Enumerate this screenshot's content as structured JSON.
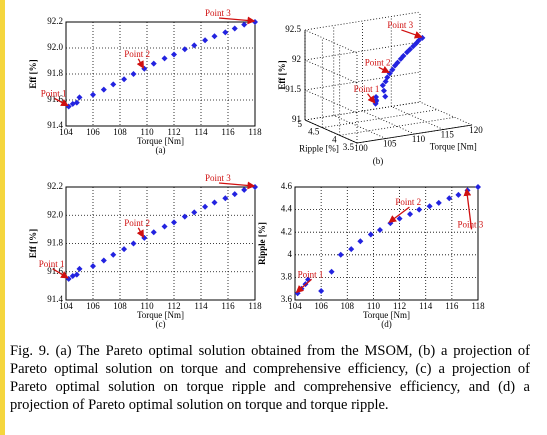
{
  "chart_data": [
    {
      "type": "scatter",
      "panel": "(a)",
      "xlabel": "Torque [Nm]",
      "ylabel": "Eff [%]",
      "color": "#2323e0",
      "grid": true,
      "x": [
        104.2,
        104.5,
        104.8,
        105.0,
        106.0,
        106.8,
        107.5,
        108.3,
        109.0,
        109.8,
        110.5,
        111.3,
        112.0,
        112.8,
        113.5,
        114.3,
        115.0,
        115.8,
        116.5,
        117.2,
        118.0
      ],
      "y": [
        91.55,
        91.57,
        91.58,
        91.62,
        91.64,
        91.68,
        91.72,
        91.76,
        91.8,
        91.84,
        91.88,
        91.92,
        91.95,
        91.99,
        92.02,
        92.06,
        92.09,
        92.12,
        92.15,
        92.18,
        92.2
      ],
      "xlim": [
        104,
        118
      ],
      "xticks": [
        104,
        106,
        108,
        110,
        112,
        114,
        116,
        118
      ],
      "ylim": [
        91.4,
        92.2
      ],
      "yticks": [
        91.4,
        91.6,
        91.8,
        {
          "value": 92,
          "label": "92.0"
        },
        92.2
      ],
      "annotations": [
        {
          "text": "Point 1"
        },
        {
          "text": "Point 2"
        },
        {
          "text": "Point 3"
        }
      ]
    },
    {
      "type": "scatter3d",
      "panel": "(b)",
      "xlabel": "Torque [Nm]",
      "ylabel": "Ripple [%]",
      "zlabel": "Eff [%]",
      "color": "#2323e0",
      "x": [
        104.2,
        104.5,
        104.8,
        105.0,
        106.0,
        106.8,
        107.5,
        108.3,
        109.0,
        109.8,
        110.5,
        111.3,
        112.0,
        112.8,
        113.5,
        114.3,
        115.0,
        115.8,
        116.5,
        117.2,
        118.0
      ],
      "y": [
        3.66,
        3.7,
        3.74,
        3.78,
        3.68,
        3.85,
        4.0,
        4.05,
        4.12,
        4.18,
        4.22,
        4.28,
        4.32,
        4.36,
        4.4,
        4.43,
        4.46,
        4.5,
        4.53,
        4.57,
        4.6
      ],
      "z": [
        91.55,
        91.57,
        91.58,
        91.62,
        91.64,
        91.68,
        91.72,
        91.76,
        91.8,
        91.84,
        91.88,
        91.92,
        91.95,
        91.99,
        92.02,
        92.06,
        92.09,
        92.12,
        92.15,
        92.18,
        92.2
      ],
      "xlim": [
        100,
        120
      ],
      "xticks": [
        100,
        105,
        110,
        115,
        120
      ],
      "ylim": [
        3.5,
        5
      ],
      "yticks": [
        3.5,
        4,
        4.5,
        5
      ],
      "zlim": [
        91,
        92.5
      ],
      "zticks": [
        91,
        {
          "value": 91.5,
          "label": "91.5"
        },
        92,
        {
          "value": 92.5,
          "label": "92.5"
        }
      ],
      "annotations": [
        {
          "text": "Point 1"
        },
        {
          "text": "Point 2"
        },
        {
          "text": "Point 3"
        }
      ]
    },
    {
      "type": "scatter",
      "panel": "(c)",
      "xlabel": "Torque [Nm]",
      "ylabel": "Eff [%]",
      "color": "#2323e0",
      "grid": true,
      "x": [
        104.2,
        104.5,
        104.8,
        105.0,
        106.0,
        106.8,
        107.5,
        108.3,
        109.0,
        109.8,
        110.5,
        111.3,
        112.0,
        112.8,
        113.5,
        114.3,
        115.0,
        115.8,
        116.5,
        117.2,
        118.0
      ],
      "y": [
        91.55,
        91.57,
        91.58,
        91.62,
        91.64,
        91.68,
        91.72,
        91.76,
        91.8,
        91.84,
        91.88,
        91.92,
        91.95,
        91.99,
        92.02,
        92.06,
        92.09,
        92.12,
        92.15,
        92.18,
        92.2
      ],
      "xlim": [
        104,
        118
      ],
      "xticks": [
        104,
        106,
        108,
        110,
        112,
        114,
        116,
        118
      ],
      "ylim": [
        91.4,
        92.2
      ],
      "yticks": [
        91.4,
        91.6,
        91.8,
        {
          "value": 92,
          "label": "92.0"
        },
        92.2
      ],
      "annotations": [
        {
          "text": "Point 1"
        },
        {
          "text": "Point 2"
        },
        {
          "text": "Point 3"
        }
      ]
    },
    {
      "type": "scatter",
      "panel": "(d)",
      "xlabel": "Torque [Nm]",
      "ylabel": "Ripple [%]",
      "color": "#2323e0",
      "grid": true,
      "x": [
        104.2,
        104.5,
        104.8,
        105.0,
        106.0,
        106.8,
        107.5,
        108.3,
        109.0,
        109.8,
        110.5,
        111.3,
        112.0,
        112.8,
        113.5,
        114.3,
        115.0,
        115.8,
        116.5,
        117.2,
        118.0
      ],
      "y": [
        3.66,
        3.7,
        3.74,
        3.78,
        3.68,
        3.85,
        4.0,
        4.05,
        4.12,
        4.18,
        4.22,
        4.28,
        4.32,
        4.36,
        4.4,
        4.43,
        4.46,
        4.5,
        4.53,
        4.57,
        4.6
      ],
      "xlim": [
        104,
        118
      ],
      "xticks": [
        104,
        106,
        108,
        110,
        112,
        114,
        116,
        118
      ],
      "ylim": [
        3.6,
        4.6
      ],
      "yticks": [
        3.6,
        3.8,
        4,
        4.2,
        4.4,
        4.6
      ],
      "annotations": [
        {
          "text": "Point 1"
        },
        {
          "text": "Point 2"
        },
        {
          "text": "Point 3"
        }
      ]
    }
  ],
  "caption": "Fig. 9. (a) The Pareto optimal solution obtained from the MSOM, (b) a projection of Pareto optimal solution on torque and comprehensive efficiency, (c) a projection of Pareto optimal solution on torque ripple and comprehensive efficiency, and (d) a projection of Pareto optimal solution on torque and torque ripple."
}
